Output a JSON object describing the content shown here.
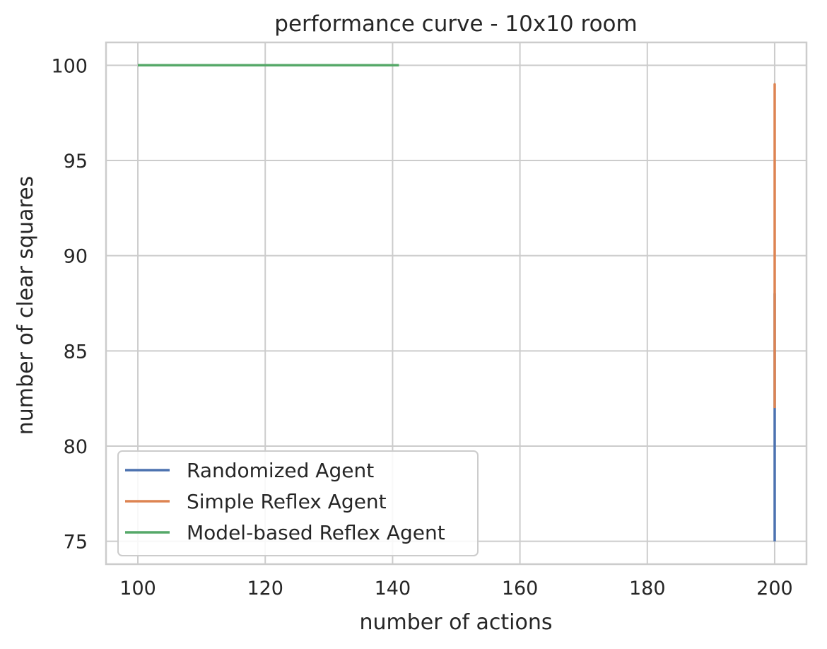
{
  "chart_data": {
    "type": "line",
    "title": "performance curve - 10x10 room",
    "xlabel": "number of actions",
    "ylabel": "number of clear squares",
    "xlim": [
      95,
      205
    ],
    "ylim": [
      73.8,
      101.2
    ],
    "xticks": [
      100,
      120,
      140,
      160,
      180,
      200
    ],
    "yticks": [
      75,
      80,
      85,
      90,
      95,
      100
    ],
    "xtick_labels": [
      "100",
      "120",
      "140",
      "160",
      "180",
      "200"
    ],
    "ytick_labels": [
      "75",
      "80",
      "85",
      "90",
      "95",
      "100"
    ],
    "grid": true,
    "legend_position": "lower-left",
    "series": [
      {
        "name": "Randomized Agent",
        "color": "#4c72b0",
        "x": [
          200,
          200,
          200,
          200,
          200
        ],
        "y": [
          75,
          88,
          78,
          82,
          79
        ]
      },
      {
        "name": "Simple Reflex Agent",
        "color": "#dd8452",
        "x": [
          200,
          200,
          200,
          200,
          200
        ],
        "y": [
          82,
          99,
          88,
          96,
          89
        ]
      },
      {
        "name": "Model-based Reflex Agent",
        "color": "#55a868",
        "x": [
          100,
          141
        ],
        "y": [
          100,
          100
        ]
      }
    ]
  }
}
